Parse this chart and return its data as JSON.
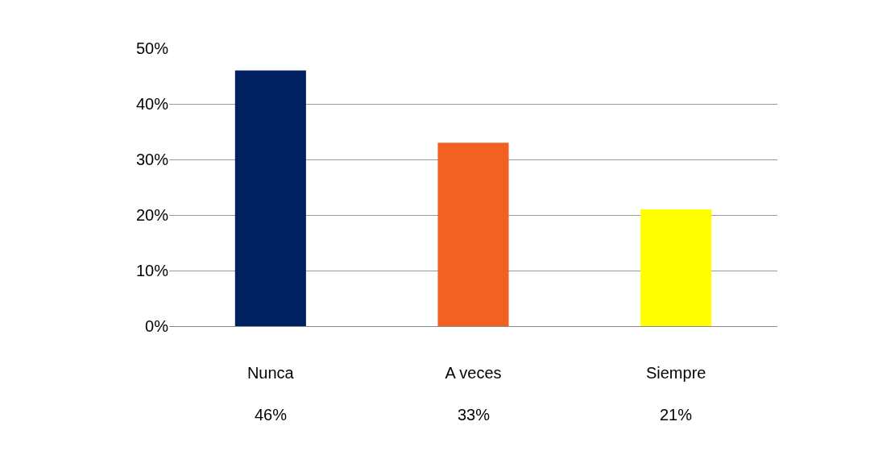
{
  "chart_data": {
    "type": "bar",
    "categories": [
      "Nunca",
      "A veces",
      "Siempre"
    ],
    "values": [
      46,
      33,
      21
    ],
    "colors": [
      "#002060",
      "#f26122",
      "#ffff00"
    ],
    "ylim": [
      0,
      50
    ],
    "yticks": [
      {
        "value": 0,
        "label": "0%"
      },
      {
        "value": 10,
        "label": "10%"
      },
      {
        "value": 20,
        "label": "20%"
      },
      {
        "value": 30,
        "label": "30%"
      },
      {
        "value": 40,
        "label": "40%"
      },
      {
        "value": 50,
        "label": "50%"
      }
    ],
    "grid": "y",
    "data_labels": true,
    "value_labels": [
      "46%",
      "33%",
      "21%"
    ]
  }
}
